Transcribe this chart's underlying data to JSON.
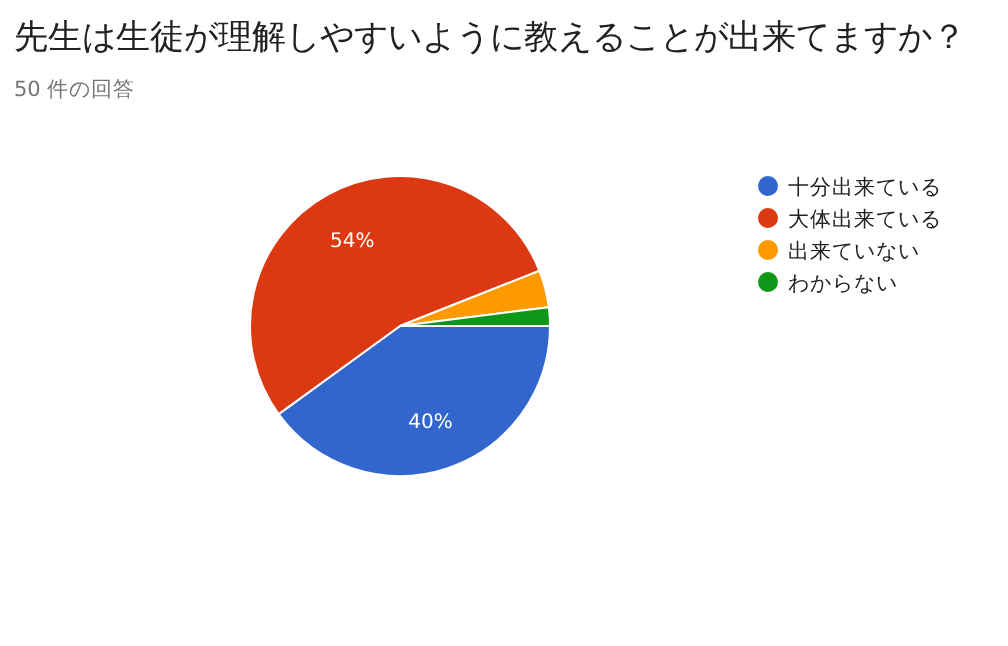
{
  "chart_data": {
    "type": "pie",
    "title": "先生は生徒が理解しやすいように教えることが出来てますか？",
    "subtitle": "50 件の回答",
    "categories": [
      "十分出来ている",
      "大体出来ている",
      "出来ていない",
      "わからない"
    ],
    "values": [
      40,
      54,
      4,
      2
    ],
    "colors": [
      "#3366cc",
      "#dc3912",
      "#ff9900",
      "#109618"
    ],
    "value_labels": [
      "40%",
      "54%",
      null,
      null
    ],
    "legend": "right"
  }
}
